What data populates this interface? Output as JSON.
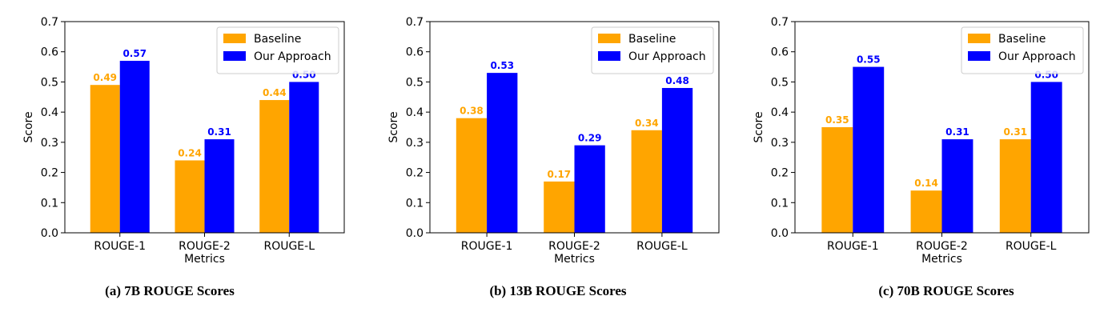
{
  "colors": {
    "baseline": "#FFA500",
    "approach": "#0000FF"
  },
  "chart_data": [
    {
      "type": "bar",
      "caption": "(a) 7B ROUGE Scores",
      "categories": [
        "ROUGE-1",
        "ROUGE-2",
        "ROUGE-L"
      ],
      "series": [
        {
          "name": "Baseline",
          "values": [
            0.49,
            0.24,
            0.44
          ],
          "labels": [
            "0.49",
            "0.24",
            "0.44"
          ]
        },
        {
          "name": "Our Approach",
          "values": [
            0.57,
            0.31,
            0.5
          ],
          "labels": [
            "0.57",
            "0.31",
            "0.50"
          ]
        }
      ],
      "xlabel": "Metrics",
      "ylabel": "Score",
      "ylim": [
        0,
        0.7
      ],
      "yticks": [
        "0.0",
        "0.1",
        "0.2",
        "0.3",
        "0.4",
        "0.5",
        "0.6",
        "0.7"
      ],
      "legend": "top-right",
      "grid": false
    },
    {
      "type": "bar",
      "caption": "(b) 13B ROUGE Scores",
      "categories": [
        "ROUGE-1",
        "ROUGE-2",
        "ROUGE-L"
      ],
      "series": [
        {
          "name": "Baseline",
          "values": [
            0.38,
            0.17,
            0.34
          ],
          "labels": [
            "0.38",
            "0.17",
            "0.34"
          ]
        },
        {
          "name": "Our Approach",
          "values": [
            0.53,
            0.29,
            0.48
          ],
          "labels": [
            "0.53",
            "0.29",
            "0.48"
          ]
        }
      ],
      "xlabel": "Metrics",
      "ylabel": "Score",
      "ylim": [
        0,
        0.7
      ],
      "yticks": [
        "0.0",
        "0.1",
        "0.2",
        "0.3",
        "0.4",
        "0.5",
        "0.6",
        "0.7"
      ],
      "legend": "top-right",
      "grid": false
    },
    {
      "type": "bar",
      "caption": "(c) 70B ROUGE Scores",
      "categories": [
        "ROUGE-1",
        "ROUGE-2",
        "ROUGE-L"
      ],
      "series": [
        {
          "name": "Baseline",
          "values": [
            0.35,
            0.14,
            0.31
          ],
          "labels": [
            "0.35",
            "0.14",
            "0.31"
          ]
        },
        {
          "name": "Our Approach",
          "values": [
            0.55,
            0.31,
            0.5
          ],
          "labels": [
            "0.55",
            "0.31",
            "0.50"
          ]
        }
      ],
      "xlabel": "Metrics",
      "ylabel": "Score",
      "ylim": [
        0,
        0.7
      ],
      "yticks": [
        "0.0",
        "0.1",
        "0.2",
        "0.3",
        "0.4",
        "0.5",
        "0.6",
        "0.7"
      ],
      "legend": "top-right",
      "grid": false
    }
  ]
}
